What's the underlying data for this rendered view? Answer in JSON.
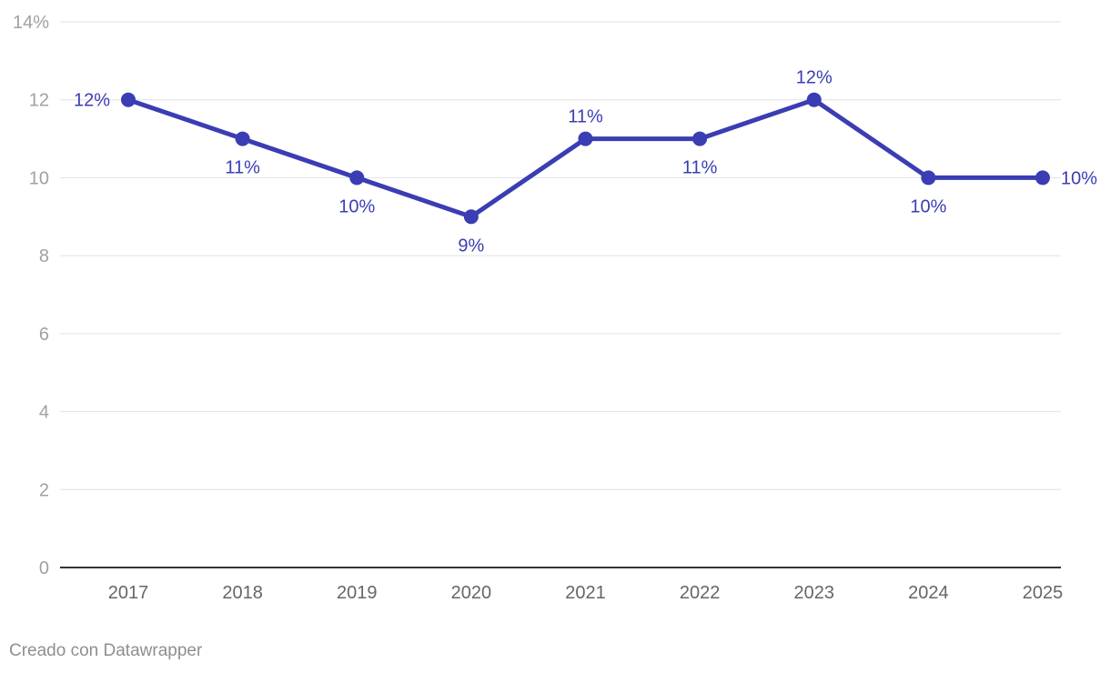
{
  "footer": {
    "credit": "Creado con Datawrapper"
  },
  "colors": {
    "series": "#3a3db3",
    "grid": "#e2e2e2",
    "axis": "#333333",
    "tick_text": "#a1a1a1"
  },
  "chart_data": {
    "type": "line",
    "x": [
      "2017",
      "2018",
      "2019",
      "2020",
      "2021",
      "2022",
      "2023",
      "2024",
      "2025"
    ],
    "series": [
      {
        "values": [
          12,
          11,
          10,
          9,
          11,
          11,
          12,
          10,
          10
        ],
        "labels": [
          "12%",
          "11%",
          "10%",
          "9%",
          "11%",
          "11%",
          "12%",
          "10%",
          "10%"
        ]
      }
    ],
    "ylim": [
      0,
      14
    ],
    "yticks": [
      0,
      2,
      4,
      6,
      8,
      10,
      12,
      14
    ],
    "ytick_labels": [
      "0",
      "2",
      "4",
      "6",
      "8",
      "10",
      "12",
      "14%"
    ],
    "grid": true,
    "markers": true
  }
}
